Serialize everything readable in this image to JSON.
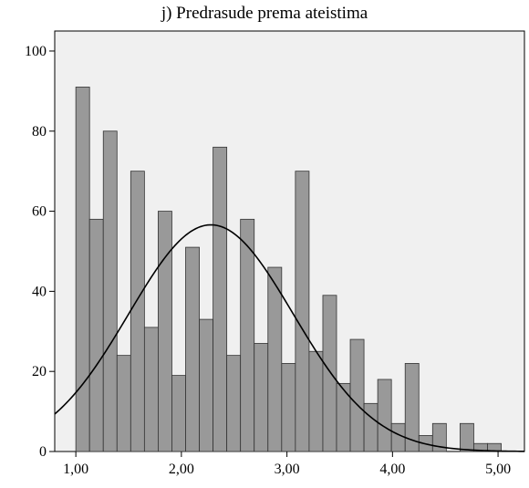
{
  "chart_data": {
    "type": "bar",
    "title": "j) Predrasude prema ateistima",
    "xlabel": "",
    "ylabel": "",
    "xlim": [
      0.8,
      5.25
    ],
    "ylim": [
      0,
      105
    ],
    "bin_width": 0.13,
    "bins": [
      {
        "x0": 1.0,
        "count": 91
      },
      {
        "x0": 1.13,
        "count": 58
      },
      {
        "x0": 1.26,
        "count": 80
      },
      {
        "x0": 1.39,
        "count": 24
      },
      {
        "x0": 1.52,
        "count": 70
      },
      {
        "x0": 1.65,
        "count": 31
      },
      {
        "x0": 1.78,
        "count": 60
      },
      {
        "x0": 1.91,
        "count": 19
      },
      {
        "x0": 2.04,
        "count": 51
      },
      {
        "x0": 2.17,
        "count": 33
      },
      {
        "x0": 2.3,
        "count": 76
      },
      {
        "x0": 2.43,
        "count": 24
      },
      {
        "x0": 2.56,
        "count": 58
      },
      {
        "x0": 2.69,
        "count": 27
      },
      {
        "x0": 2.82,
        "count": 46
      },
      {
        "x0": 2.95,
        "count": 22
      },
      {
        "x0": 3.08,
        "count": 70
      },
      {
        "x0": 3.21,
        "count": 25
      },
      {
        "x0": 3.34,
        "count": 39
      },
      {
        "x0": 3.47,
        "count": 17
      },
      {
        "x0": 3.6,
        "count": 28
      },
      {
        "x0": 3.73,
        "count": 12
      },
      {
        "x0": 3.86,
        "count": 18
      },
      {
        "x0": 3.99,
        "count": 7
      },
      {
        "x0": 4.12,
        "count": 22
      },
      {
        "x0": 4.25,
        "count": 4
      },
      {
        "x0": 4.38,
        "count": 7
      },
      {
        "x0": 4.51,
        "count": 0
      },
      {
        "x0": 4.64,
        "count": 7
      },
      {
        "x0": 4.77,
        "count": 2
      },
      {
        "x0": 4.9,
        "count": 2
      }
    ],
    "normal_curve": {
      "mean": 2.28,
      "sd": 0.78,
      "peak": 56.6
    },
    "x_ticks": [
      {
        "value": 1,
        "label": "1,00"
      },
      {
        "value": 2,
        "label": "2,00"
      },
      {
        "value": 3,
        "label": "3,00"
      },
      {
        "value": 4,
        "label": "4,00"
      },
      {
        "value": 5,
        "label": "5,00"
      }
    ],
    "y_ticks": [
      {
        "value": 0,
        "label": "0"
      },
      {
        "value": 20,
        "label": "20"
      },
      {
        "value": 40,
        "label": "40"
      },
      {
        "value": 60,
        "label": "60"
      },
      {
        "value": 80,
        "label": "80"
      },
      {
        "value": 100,
        "label": "100"
      }
    ],
    "colors": {
      "plot_background": "#f0f0f0",
      "bar_fill": "#999999",
      "bar_stroke": "#333333",
      "curve": "#000000"
    },
    "grid": false,
    "legend": "none"
  }
}
